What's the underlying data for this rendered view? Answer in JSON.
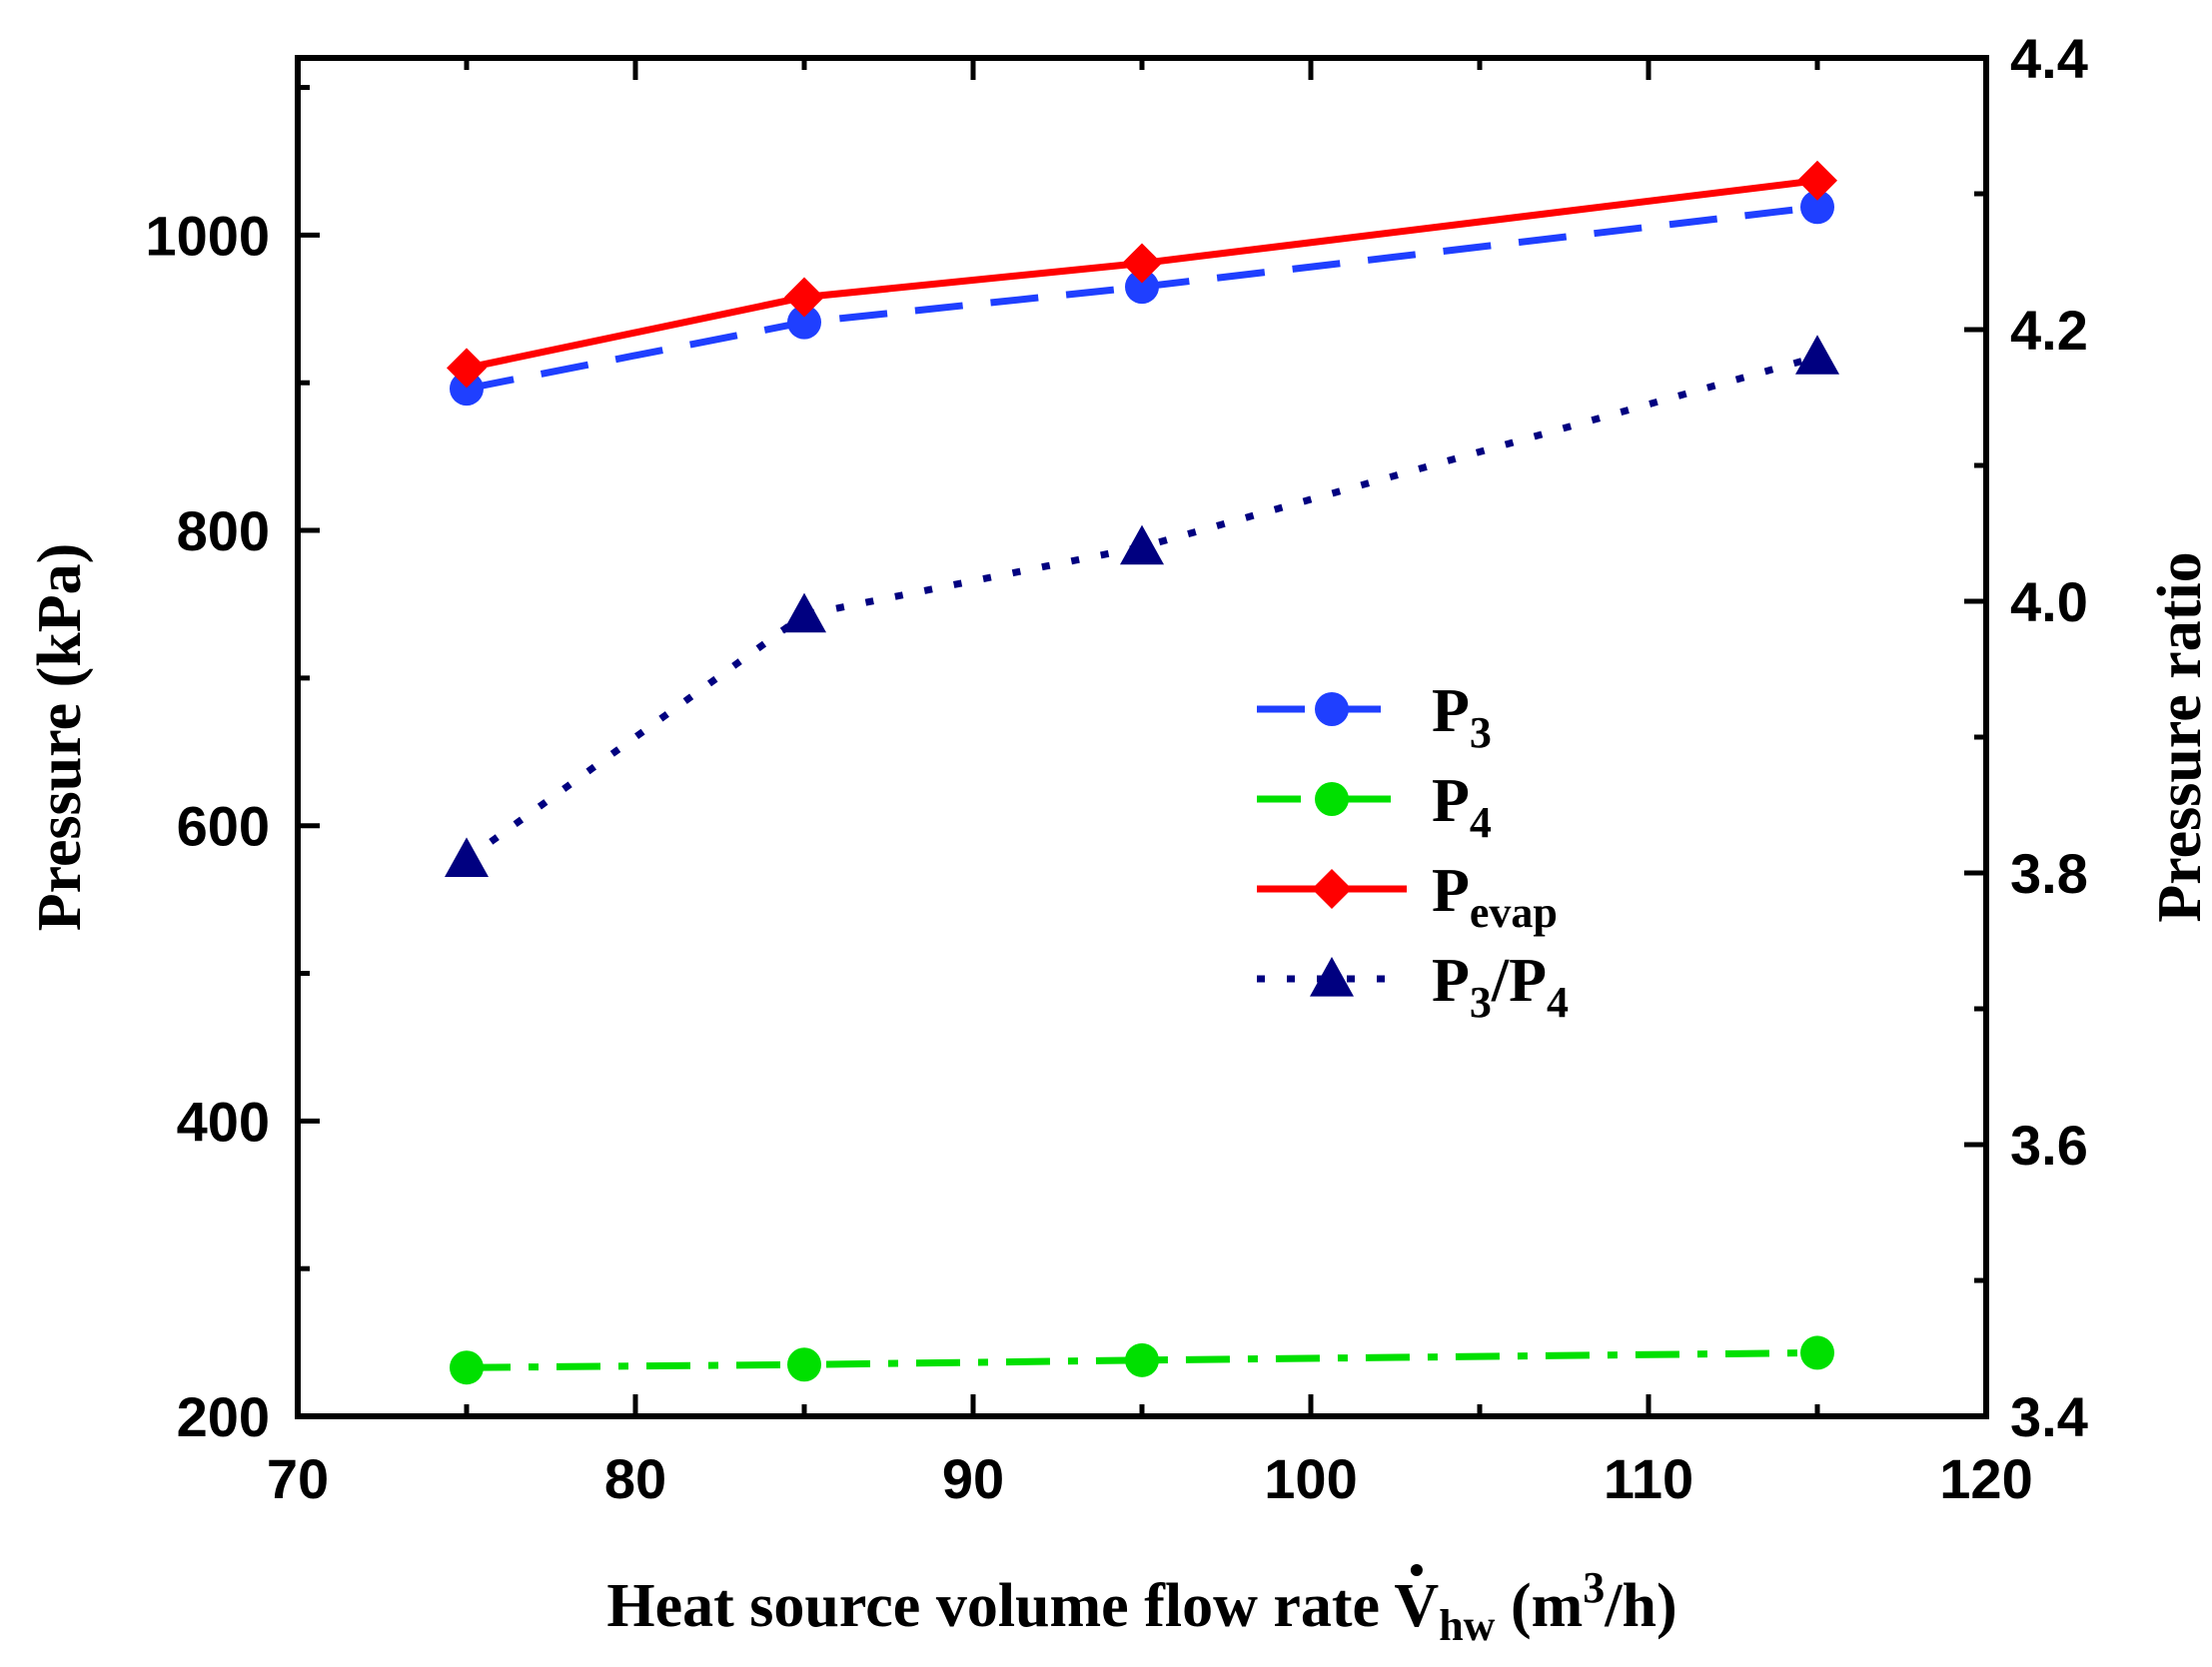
{
  "chart_data": {
    "type": "line",
    "title": "",
    "xlabel": {
      "main": "Heat source volume flow rate ",
      "symbol": "V",
      "symbol_sub": "hw",
      "unit_open": " (m",
      "unit_sup": "3",
      "unit_close": "/h)"
    },
    "ylabel_left": "Pressure (kPa)",
    "ylabel_right": "Pressure ratio",
    "xlim": [
      70,
      120
    ],
    "ylim_left": [
      200,
      1120
    ],
    "ylim_right": [
      3.4,
      4.4
    ],
    "x_ticks": [
      "70",
      "80",
      "90",
      "100",
      "110",
      "120"
    ],
    "y_left_ticks": [
      "200",
      "400",
      "600",
      "800",
      "1000"
    ],
    "y_right_ticks": [
      "3.4",
      "3.6",
      "3.8",
      "4.0",
      "4.2",
      "4.4"
    ],
    "x": [
      75,
      85,
      95,
      115
    ],
    "series": [
      {
        "id": "p3",
        "name": "P",
        "sub": "3",
        "axis": "left",
        "values": [
          896,
          941,
          965,
          1019
        ],
        "color": "#1f3fff",
        "marker": "circle",
        "dash": "48,28"
      },
      {
        "id": "p4",
        "name": "P",
        "sub": "4",
        "axis": "left",
        "values": [
          233,
          235,
          238,
          243
        ],
        "color": "#00e000",
        "marker": "circle",
        "dash": "44,18,10,18"
      },
      {
        "id": "pevap",
        "name": "P",
        "sub": "evap",
        "axis": "left",
        "values": [
          910,
          958,
          981,
          1037
        ],
        "color": "#ff0000",
        "marker": "diamond",
        "dash": ""
      },
      {
        "id": "ratio",
        "name": "P",
        "sub": "3",
        "suffix_name": "/P",
        "suffix_sub": "4",
        "axis": "right",
        "values": [
          3.81,
          3.99,
          4.04,
          4.18
        ],
        "color": "#000080",
        "marker": "triangle",
        "dash": "8,22"
      }
    ],
    "legend_position": "center-right"
  }
}
